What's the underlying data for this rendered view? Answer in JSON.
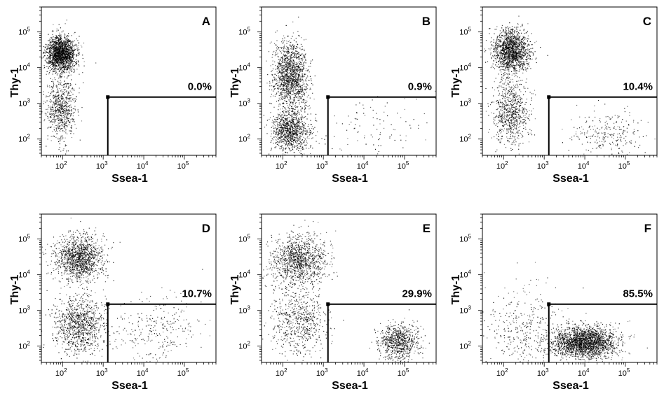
{
  "chart_data": [
    {
      "type": "scatter",
      "panel": "A",
      "xlabel": "Ssea-1",
      "ylabel": "Thy-1",
      "gate_percent": "0.0%",
      "gate": {
        "x_min": 1300,
        "y_min": 1500
      },
      "xlim": [
        30,
        600000
      ],
      "ylim": [
        35,
        500000
      ],
      "x_scale": "log",
      "y_scale": "log",
      "x_ticks": [
        "10",
        "10",
        "10",
        "10"
      ],
      "y_ticks": [
        "10",
        "10",
        "10",
        "10"
      ],
      "tick_exponents": [
        "2",
        "3",
        "4",
        "5"
      ],
      "populations": [
        {
          "x_center": 90,
          "y_center": 25000,
          "x_spread": 0.18,
          "y_spread": 0.25,
          "weight": 0.72
        },
        {
          "x_center": 90,
          "y_center": 700,
          "x_spread": 0.18,
          "y_spread": 0.45,
          "weight": 0.28
        }
      ]
    },
    {
      "type": "scatter",
      "panel": "B",
      "xlabel": "Ssea-1",
      "ylabel": "Thy-1",
      "gate_percent": "0.9%",
      "gate": {
        "x_min": 1300,
        "y_min": 1500
      },
      "xlim": [
        30,
        600000
      ],
      "ylim": [
        35,
        500000
      ],
      "x_scale": "log",
      "y_scale": "log",
      "x_ticks": [
        "10",
        "10",
        "10",
        "10"
      ],
      "y_ticks": [
        "10",
        "10",
        "10",
        "10"
      ],
      "tick_exponents": [
        "2",
        "3",
        "4",
        "5"
      ],
      "populations": [
        {
          "x_center": 150,
          "y_center": 6000,
          "x_spread": 0.22,
          "y_spread": 0.45,
          "weight": 0.55
        },
        {
          "x_center": 150,
          "y_center": 180,
          "x_spread": 0.22,
          "y_spread": 0.3,
          "weight": 0.41
        },
        {
          "x_center": 20000,
          "y_center": 200,
          "x_spread": 0.7,
          "y_spread": 0.5,
          "weight": 0.04
        }
      ]
    },
    {
      "type": "scatter",
      "panel": "C",
      "xlabel": "Ssea-1",
      "ylabel": "Thy-1",
      "gate_percent": "10.4%",
      "gate": {
        "x_min": 1300,
        "y_min": 1500
      },
      "xlim": [
        30,
        600000
      ],
      "ylim": [
        35,
        500000
      ],
      "x_scale": "log",
      "y_scale": "log",
      "x_ticks": [
        "10",
        "10",
        "10",
        "10"
      ],
      "y_ticks": [
        "10",
        "10",
        "10",
        "10"
      ],
      "tick_exponents": [
        "2",
        "3",
        "4",
        "5"
      ],
      "populations": [
        {
          "x_center": 150,
          "y_center": 30000,
          "x_spread": 0.22,
          "y_spread": 0.3,
          "weight": 0.6
        },
        {
          "x_center": 150,
          "y_center": 600,
          "x_spread": 0.22,
          "y_spread": 0.45,
          "weight": 0.3
        },
        {
          "x_center": 40000,
          "y_center": 150,
          "x_spread": 0.5,
          "y_spread": 0.35,
          "weight": 0.1
        }
      ]
    },
    {
      "type": "scatter",
      "panel": "D",
      "xlabel": "Ssea-1",
      "ylabel": "Thy-1",
      "gate_percent": "10.7%",
      "gate": {
        "x_min": 1300,
        "y_min": 1500
      },
      "xlim": [
        30,
        600000
      ],
      "ylim": [
        35,
        500000
      ],
      "x_scale": "log",
      "y_scale": "log",
      "x_ticks": [
        "10",
        "10",
        "10",
        "10"
      ],
      "y_ticks": [
        "10",
        "10",
        "10",
        "10"
      ],
      "tick_exponents": [
        "2",
        "3",
        "4",
        "5"
      ],
      "populations": [
        {
          "x_center": 250,
          "y_center": 30000,
          "x_spread": 0.3,
          "y_spread": 0.3,
          "weight": 0.5
        },
        {
          "x_center": 250,
          "y_center": 400,
          "x_spread": 0.3,
          "y_spread": 0.4,
          "weight": 0.39
        },
        {
          "x_center": 20000,
          "y_center": 300,
          "x_spread": 0.6,
          "y_spread": 0.5,
          "weight": 0.11
        }
      ]
    },
    {
      "type": "scatter",
      "panel": "E",
      "xlabel": "Ssea-1",
      "ylabel": "Thy-1",
      "gate_percent": "29.9%",
      "gate": {
        "x_min": 1300,
        "y_min": 1500
      },
      "xlim": [
        30,
        600000
      ],
      "ylim": [
        35,
        500000
      ],
      "x_scale": "log",
      "y_scale": "log",
      "x_ticks": [
        "10",
        "10",
        "10",
        "10"
      ],
      "y_ticks": [
        "10",
        "10",
        "10",
        "10"
      ],
      "tick_exponents": [
        "2",
        "3",
        "4",
        "5"
      ],
      "populations": [
        {
          "x_center": 250,
          "y_center": 25000,
          "x_spread": 0.35,
          "y_spread": 0.35,
          "weight": 0.45
        },
        {
          "x_center": 250,
          "y_center": 500,
          "x_spread": 0.35,
          "y_spread": 0.45,
          "weight": 0.25
        },
        {
          "x_center": 70000,
          "y_center": 130,
          "x_spread": 0.25,
          "y_spread": 0.25,
          "weight": 0.3
        }
      ]
    },
    {
      "type": "scatter",
      "panel": "F",
      "xlabel": "Ssea-1",
      "ylabel": "Thy-1",
      "gate_percent": "85.5%",
      "gate": {
        "x_min": 1300,
        "y_min": 1500
      },
      "xlim": [
        30,
        600000
      ],
      "ylim": [
        35,
        500000
      ],
      "x_scale": "log",
      "y_scale": "log",
      "x_ticks": [
        "10",
        "10",
        "10",
        "10"
      ],
      "y_ticks": [
        "10",
        "10",
        "10",
        "10"
      ],
      "tick_exponents": [
        "2",
        "3",
        "4",
        "5"
      ],
      "populations": [
        {
          "x_center": 10000,
          "y_center": 130,
          "x_spread": 0.4,
          "y_spread": 0.22,
          "weight": 0.86
        },
        {
          "x_center": 300,
          "y_center": 300,
          "x_spread": 0.5,
          "y_spread": 0.6,
          "weight": 0.14
        }
      ]
    }
  ],
  "colors": {
    "dots": "#000000",
    "frame": "#000000",
    "gate": "#000000",
    "background": "#ffffff"
  }
}
